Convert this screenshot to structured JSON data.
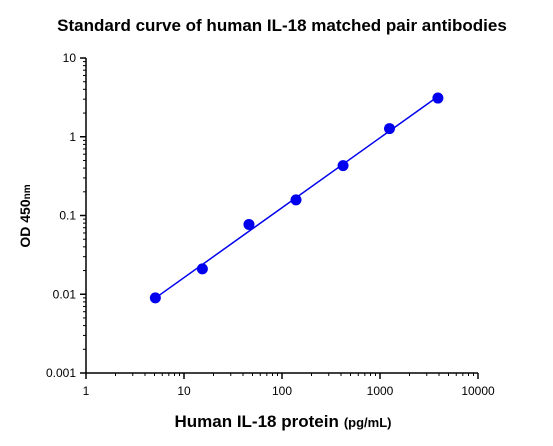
{
  "chart_data": {
    "type": "scatter",
    "title": "Standard curve of human IL-18 matched pair antibodies",
    "xlabel": "Human IL-18 protein",
    "xlabel_unit": "(pg/mL)",
    "ylabel": "OD 450",
    "ylabel_sub": "nm",
    "xscale": "log",
    "yscale": "log",
    "xlim": [
      1,
      10000
    ],
    "ylim": [
      0.001,
      10
    ],
    "x_ticks": [
      "1",
      "10",
      "100",
      "1000",
      "10000"
    ],
    "y_ticks": [
      "0.001",
      "0.01",
      "0.1",
      "1",
      "10"
    ],
    "grid": false,
    "fit_line": true,
    "colors": {
      "points": "#0000ee",
      "line": "#0000ee",
      "axis": "#000000"
    },
    "series": [
      {
        "x": [
          5.1,
          15.4,
          46,
          139,
          420,
          1250,
          3900
        ],
        "y": [
          0.009,
          0.021,
          0.077,
          0.158,
          0.43,
          1.27,
          3.1
        ]
      }
    ]
  }
}
